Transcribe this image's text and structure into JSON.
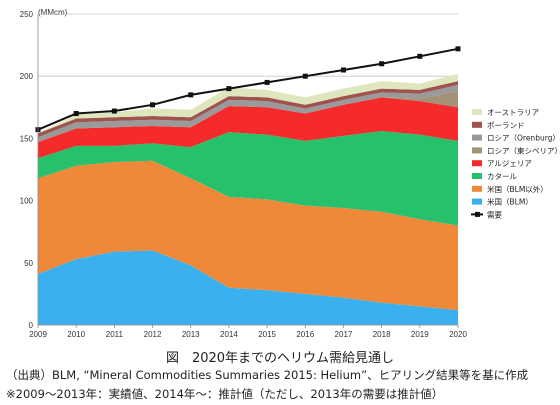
{
  "caption": {
    "title": "図　2020年までのヘリウム需給見通し",
    "source": "（出典）BLM, “Mineral Commodities Summaries 2015: Helium”、ヒアリング結果等を基に作成",
    "note": "※2009～2013年：実績値、2014年～：推計値（ただし、2013年の需要は推計値）"
  },
  "chart_data": {
    "type": "area",
    "stacked": true,
    "unit_label": "(MMcm)",
    "x": [
      "2009",
      "2010",
      "2011",
      "2012",
      "2013",
      "2014",
      "2015",
      "2016",
      "2017",
      "2018",
      "2019",
      "2020"
    ],
    "ylim": [
      0,
      250
    ],
    "yticks": [
      0,
      50,
      100,
      150,
      200,
      250
    ],
    "grid": true,
    "legend_position": "right",
    "series": [
      {
        "name": "米国（BLM）",
        "color": "#3bb0ef",
        "values": [
          41,
          53,
          59,
          60,
          48,
          30,
          28,
          25,
          22,
          18,
          15,
          12
        ]
      },
      {
        "name": "米国（BLM以外）",
        "color": "#f0883a",
        "values": [
          77,
          75,
          72,
          72,
          70,
          73,
          73,
          71,
          72,
          73,
          70,
          68
        ]
      },
      {
        "name": "カタール",
        "color": "#27c06b",
        "values": [
          16,
          16,
          13,
          14,
          25,
          52,
          52,
          52,
          58,
          65,
          68,
          68
        ]
      },
      {
        "name": "アルジェリア",
        "color": "#f52a2a",
        "values": [
          13,
          14,
          15,
          14,
          16,
          21,
          22,
          22,
          25,
          27,
          27,
          27
        ]
      },
      {
        "name": "ロシア（東シベリア）",
        "color": "#a49276",
        "values": [
          0,
          0,
          0,
          0,
          0,
          0,
          0,
          0,
          0,
          0,
          2,
          13
        ]
      },
      {
        "name": "ロシア（Orenburg）",
        "color": "#9a9a9a",
        "values": [
          4,
          5,
          5,
          5,
          5,
          5,
          5,
          4,
          4,
          4,
          4,
          5
        ]
      },
      {
        "name": "ポーランド",
        "color": "#a0524e",
        "values": [
          3,
          3,
          3,
          3,
          3,
          3,
          3,
          3,
          3,
          3,
          3,
          3
        ]
      },
      {
        "name": "オーストラリア",
        "color": "#dde6bc",
        "values": [
          0,
          3,
          4,
          6,
          6,
          7,
          6,
          6,
          6,
          6,
          5,
          6
        ]
      }
    ],
    "demand": {
      "name": "需要",
      "color": "#111111",
      "values": [
        157,
        170,
        172,
        177,
        185,
        190,
        195,
        200,
        205,
        210,
        216,
        222
      ]
    },
    "legend_order": [
      "オーストラリア",
      "ポーランド",
      "ロシア（Orenburg）",
      "ロシア（東シベリア）",
      "アルジェリア",
      "カタール",
      "米国（BLM以外）",
      "米国（BLM）",
      "需要"
    ]
  }
}
